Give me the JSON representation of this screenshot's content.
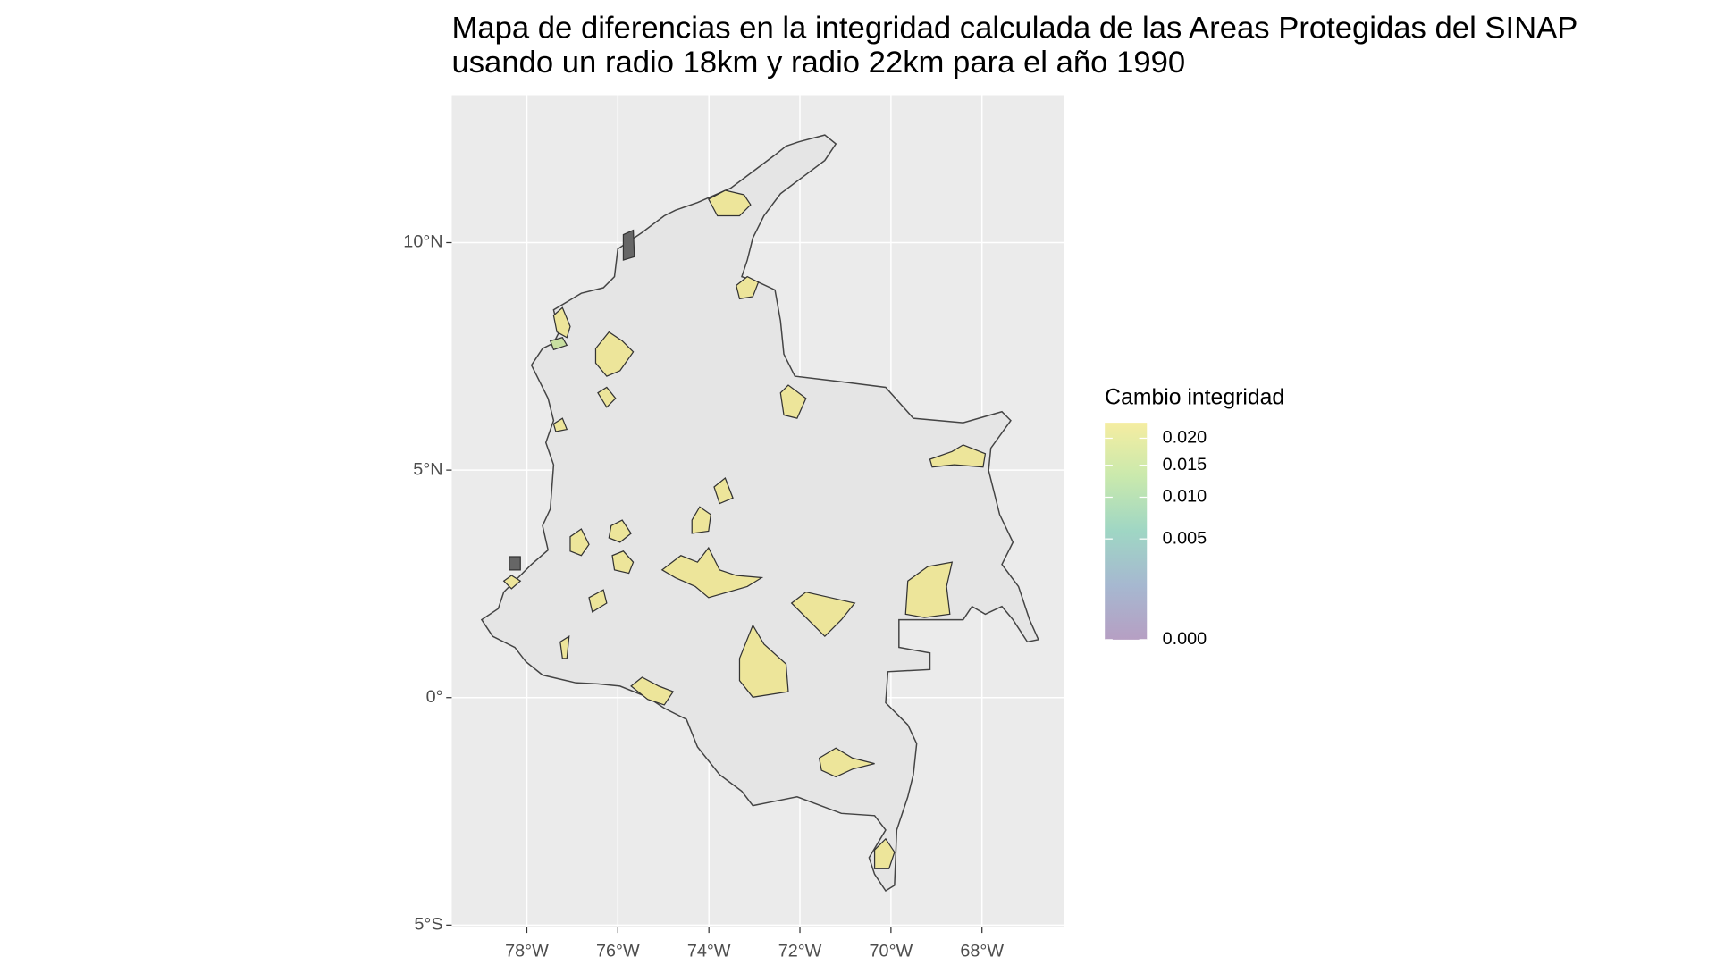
{
  "chart_data": {
    "type": "map",
    "title": "Mapa de diferencias en la integridad calculada de las Areas Protegidas del SINAP",
    "subtitle": "usando un radio 18km y radio 22km para el año 1990",
    "xlim": [
      -79.65,
      -66.2
    ],
    "ylim": [
      -5.05,
      13.24
    ],
    "xticks": [
      {
        "value": -78,
        "label": "78°W"
      },
      {
        "value": -76,
        "label": "76°W"
      },
      {
        "value": -74,
        "label": "74°W"
      },
      {
        "value": -72,
        "label": "72°W"
      },
      {
        "value": -70,
        "label": "70°W"
      },
      {
        "value": -68,
        "label": "68°W"
      }
    ],
    "yticks": [
      {
        "value": -5,
        "label": "5°S"
      },
      {
        "value": 0,
        "label": "0°"
      },
      {
        "value": 5,
        "label": "5°N"
      },
      {
        "value": 10,
        "label": "10°N"
      }
    ],
    "grid": true,
    "legend": {
      "title": "Cambio integridad",
      "scale": "sqrt",
      "lim": [
        0,
        0.0232
      ],
      "ticks": [
        {
          "value": 0,
          "label": "0.000"
        },
        {
          "value": 0.005,
          "label": "0.005"
        },
        {
          "value": 0.01,
          "label": "0.010"
        },
        {
          "value": 0.015,
          "label": "0.015"
        },
        {
          "value": 0.02,
          "label": "0.020"
        }
      ],
      "colors": [
        "#b69fc3",
        "#a6b8d0",
        "#9fd6c4",
        "#c9e9ad",
        "#f5eda1"
      ]
    }
  }
}
